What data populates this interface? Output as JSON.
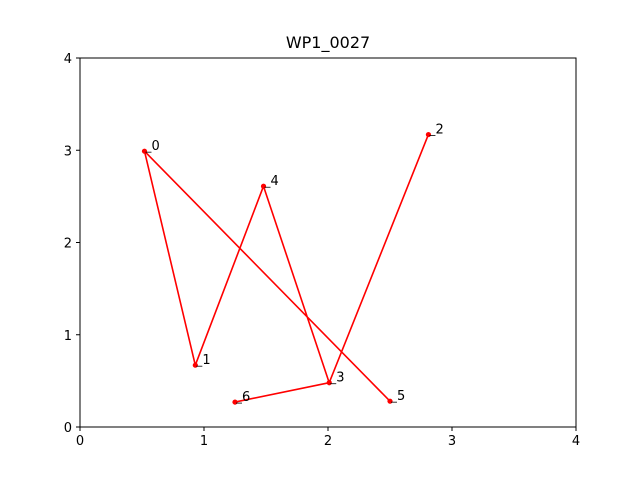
{
  "chart_data": {
    "type": "line",
    "title": "WP1_0027",
    "xlabel": "",
    "ylabel": "",
    "xlim": [
      0,
      4
    ],
    "ylim": [
      0,
      4
    ],
    "xticks": [
      "0",
      "1",
      "2",
      "3",
      "4"
    ],
    "yticks": [
      "0",
      "1",
      "2",
      "3",
      "4"
    ],
    "grid": false,
    "series": [
      {
        "color": "#ff0000",
        "points": [
          {
            "label": "0",
            "x": 0.52,
            "y": 2.99
          },
          {
            "label": "1",
            "x": 0.93,
            "y": 0.67
          },
          {
            "label": "4",
            "x": 1.48,
            "y": 2.61
          },
          {
            "label": "3",
            "x": 2.01,
            "y": 0.48
          },
          {
            "label": "2",
            "x": 2.81,
            "y": 3.17
          },
          {
            "label": "5",
            "x": 2.5,
            "y": 0.28
          },
          {
            "label": "6",
            "x": 1.25,
            "y": 0.27
          }
        ],
        "path_order": [
          "5",
          "0",
          "1",
          "4",
          "3",
          "2"
        ],
        "extra_segment": [
          "6",
          "3"
        ]
      }
    ]
  }
}
